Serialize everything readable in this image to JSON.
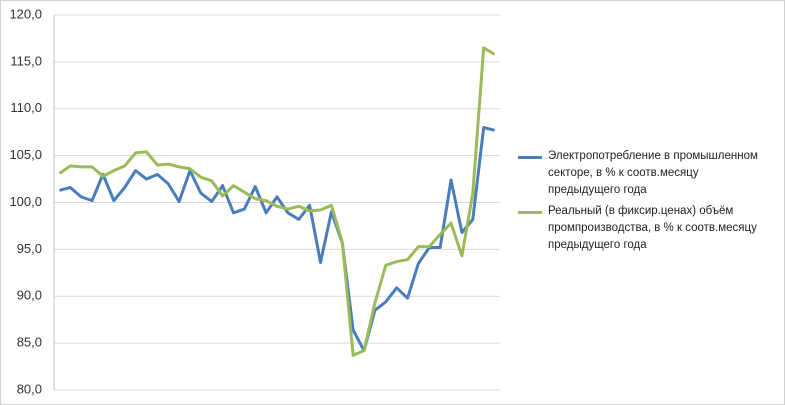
{
  "chart_data": {
    "type": "line",
    "categories": [
      null,
      null,
      null,
      null,
      null,
      null,
      null,
      null,
      null,
      null,
      null,
      null,
      null,
      null,
      null,
      null,
      null,
      null,
      null,
      null,
      null,
      null,
      null,
      null,
      null,
      null,
      null,
      null,
      null,
      null,
      null,
      null,
      null,
      null,
      null,
      null,
      null,
      null,
      null,
      null,
      null
    ],
    "series": [
      {
        "name": "Электропотребление  в промышленном секторе, в %  к соотв.месяцу предыдущего  года",
        "color": "#4a7ebb",
        "values": [
          101.3,
          101.6,
          100.6,
          100.2,
          103.0,
          100.2,
          101.6,
          103.4,
          102.5,
          103.0,
          102.0,
          100.1,
          103.4,
          101.0,
          100.1,
          101.8,
          98.9,
          99.3,
          101.7,
          98.9,
          100.6,
          98.9,
          98.2,
          99.7,
          93.6,
          99.0,
          95.7,
          86.4,
          84.2,
          88.5,
          89.4,
          90.9,
          89.8,
          93.5,
          95.2,
          95.2,
          102.4,
          96.8,
          98.2,
          108.0,
          107.7
        ]
      },
      {
        "name": "Реальный (в фиксир.ценах) объём промпроизводства,  в %  к соотв.месяцу предыдущего года",
        "color": "#9bbb59",
        "values": [
          103.1,
          103.9,
          103.8,
          103.8,
          102.8,
          103.4,
          103.9,
          105.3,
          105.4,
          104.0,
          104.1,
          103.8,
          103.6,
          102.7,
          102.3,
          100.7,
          101.8,
          101.1,
          100.4,
          100.2,
          99.6,
          99.3,
          99.6,
          99.1,
          99.2,
          99.7,
          95.8,
          83.7,
          84.2,
          89.3,
          93.3,
          93.7,
          93.9,
          95.3,
          95.3,
          96.6,
          97.8,
          94.3,
          101.0,
          116.5,
          115.8
        ]
      }
    ],
    "ylim": [
      80,
      120
    ],
    "yticks": [
      {
        "value": 80,
        "label": "80,0"
      },
      {
        "value": 85,
        "label": "85,0"
      },
      {
        "value": 90,
        "label": "90,0"
      },
      {
        "value": 95,
        "label": "95,0"
      },
      {
        "value": 100,
        "label": "100,0"
      },
      {
        "value": 105,
        "label": "105,0"
      },
      {
        "value": 110,
        "label": "110,0"
      },
      {
        "value": 115,
        "label": "115,0"
      },
      {
        "value": 120,
        "label": "120,0"
      }
    ],
    "grid": true
  }
}
